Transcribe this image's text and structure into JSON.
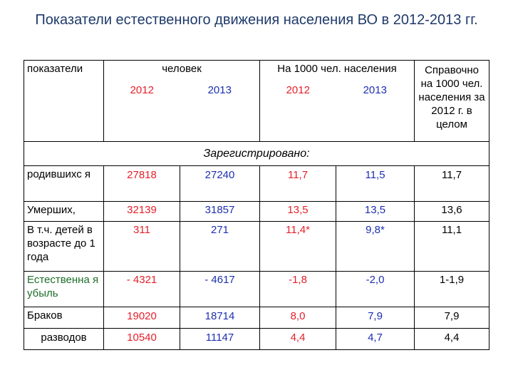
{
  "title": "Показатели естественного движения населения ВО в 2012-2013 гг.",
  "header": {
    "col_indicators": "показатели",
    "group_people": "человек",
    "group_per1000": "На 1000 чел. населения",
    "ref": "Справочно на 1000 чел. населения за 2012 г. в целом",
    "year_2012_a": "2012",
    "year_2013_a": "2013",
    "year_2012_b": "2012",
    "year_2013_b": "2013"
  },
  "registered_label": "Зарегистрировано:",
  "rows": [
    {
      "label": "родившихс я",
      "p2012": "27818",
      "p2013": "27240",
      "r2012": "11,7",
      "r2013": "11,5",
      "ref": "11,7"
    },
    {
      "label": "Умерших,",
      "p2012": "32139",
      "p2013": "31857",
      "r2012": "13,5",
      "r2013": "13,5",
      "ref": "13,6"
    },
    {
      "label": "В т.ч. детей в возрасте до 1 года",
      "p2012": "311",
      "p2013": "271",
      "r2012": "11,4*",
      "r2013": "9,8*",
      "ref": "11,1"
    },
    {
      "label": "Естественна я убыль",
      "p2012": "- 4321",
      "p2013": "- 4617",
      "r2012": "-1,8",
      "r2013": "-2,0",
      "ref": "1-1,9"
    },
    {
      "label": "Браков",
      "p2012": "19020",
      "p2013": "18714",
      "r2012": "8,0",
      "r2013": "7,9",
      "ref": "7,9"
    },
    {
      "label": "разводов",
      "p2012": "10540",
      "p2013": "11147",
      "r2012": "4,4",
      "r2013": "4,7",
      "ref": "4,4"
    }
  ],
  "colors": {
    "title": "#1f3a6b",
    "y2012": "#e5202a",
    "y2013": "#1e2fb0",
    "green": "#1f6e2a"
  }
}
